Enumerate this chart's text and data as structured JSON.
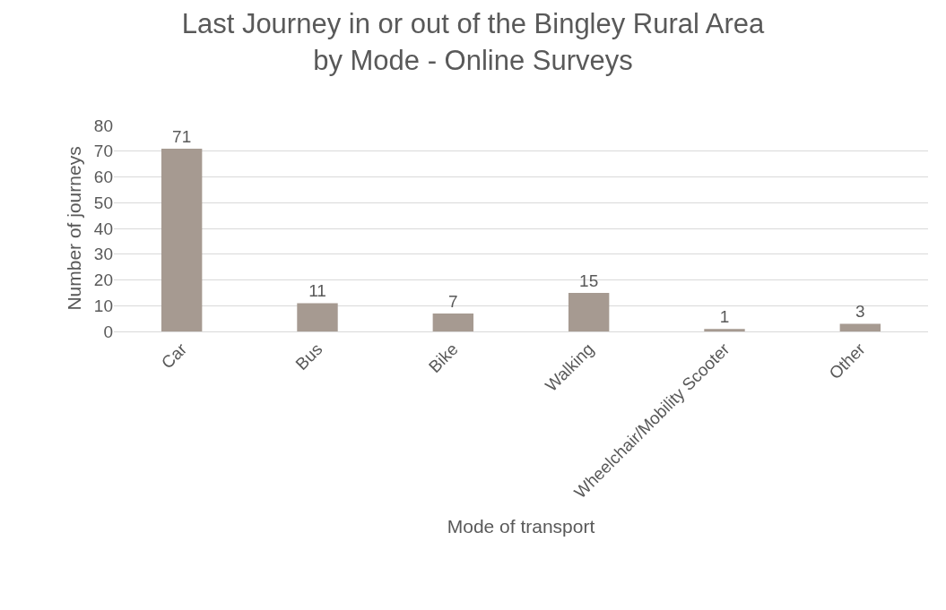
{
  "chart_data": {
    "type": "bar",
    "title": "Last Journey in or out of the Bingley Rural Area\nby Mode - Online Surveys",
    "xlabel": "Mode of transport",
    "ylabel": "Number of journeys",
    "categories": [
      "Car",
      "Bus",
      "Bike",
      "Walking",
      "Wheelchair/Mobility Scooter",
      "Other"
    ],
    "values": [
      71,
      11,
      7,
      15,
      1,
      3
    ],
    "color": "#a69a91",
    "ylim": [
      0,
      80
    ],
    "yticks": [
      0,
      10,
      20,
      30,
      40,
      50,
      60,
      70,
      80
    ],
    "grid": "y",
    "data_labels": true,
    "legend": false
  }
}
